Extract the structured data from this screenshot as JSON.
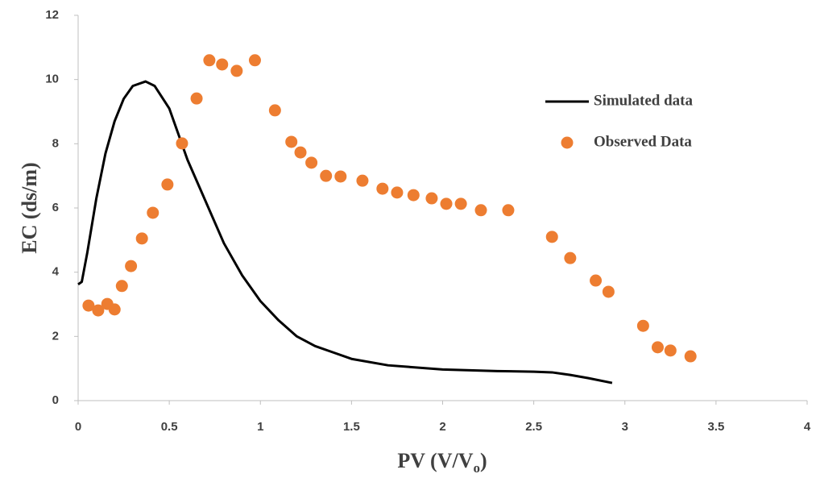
{
  "chart_data": {
    "type": "line-scatter",
    "xlabel": [
      "PV (V/V",
      "o",
      ")"
    ],
    "ylabel": "EC (ds/m)",
    "xlim": [
      0,
      4
    ],
    "xticks": [
      0,
      0.5,
      1,
      1.5,
      2,
      2.5,
      3,
      3.5,
      4
    ],
    "ylim": [
      0,
      12
    ],
    "yticks": [
      0,
      2,
      4,
      6,
      8,
      10,
      12
    ],
    "series": [
      {
        "name": "Simulated data",
        "kind": "line",
        "color": "#000000",
        "x": [
          0,
          0.02,
          0.05,
          0.1,
          0.15,
          0.2,
          0.25,
          0.3,
          0.37,
          0.42,
          0.5,
          0.6,
          0.7,
          0.8,
          0.9,
          1.0,
          1.1,
          1.2,
          1.3,
          1.4,
          1.5,
          1.7,
          2.0,
          2.3,
          2.5,
          2.6,
          2.7,
          2.8,
          2.93
        ],
        "values": [
          3.62,
          3.7,
          4.6,
          6.3,
          7.7,
          8.7,
          9.4,
          9.8,
          9.94,
          9.8,
          9.1,
          7.5,
          6.2,
          4.9,
          3.9,
          3.1,
          2.5,
          2.0,
          1.7,
          1.5,
          1.3,
          1.1,
          0.97,
          0.92,
          0.9,
          0.88,
          0.8,
          0.7,
          0.55
        ]
      },
      {
        "name": "Observed Data",
        "kind": "scatter",
        "color": "#ED7D31",
        "x": [
          0.057,
          0.11,
          0.16,
          0.2,
          0.24,
          0.29,
          0.35,
          0.41,
          0.49,
          0.57,
          0.65,
          0.72,
          0.79,
          0.87,
          0.97,
          1.08,
          1.17,
          1.22,
          1.28,
          1.36,
          1.44,
          1.56,
          1.67,
          1.75,
          1.84,
          1.94,
          2.02,
          2.1,
          2.21,
          2.36,
          2.6,
          2.7,
          2.84,
          2.91,
          3.1,
          3.18,
          3.25,
          3.36
        ],
        "values": [
          2.96,
          2.81,
          3.01,
          2.84,
          3.57,
          4.19,
          5.05,
          5.85,
          6.73,
          8.01,
          9.41,
          10.6,
          10.47,
          10.27,
          10.6,
          9.04,
          8.06,
          7.73,
          7.41,
          7.0,
          6.98,
          6.85,
          6.6,
          6.48,
          6.4,
          6.3,
          6.13,
          6.13,
          5.93,
          5.93,
          5.1,
          4.44,
          3.74,
          3.39,
          2.33,
          1.66,
          1.56,
          1.38
        ]
      }
    ]
  }
}
